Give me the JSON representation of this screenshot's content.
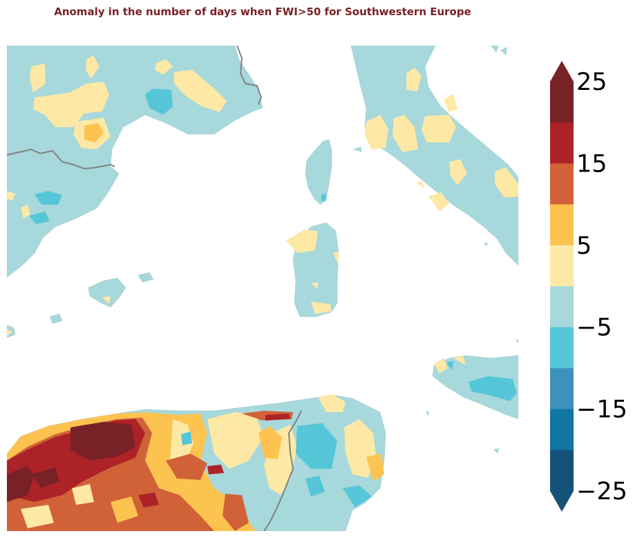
{
  "title": "Anomaly in the number of days when FWI>50 for Southwestern Europe",
  "colorbar": {
    "ticks": [
      "25",
      "15",
      "5",
      "−5",
      "−15",
      "−25"
    ],
    "tick_values": [
      25,
      15,
      5,
      -5,
      -15,
      -25
    ],
    "levels": [
      -25,
      -20,
      -15,
      -10,
      -5,
      0,
      5,
      10,
      15,
      20,
      25
    ],
    "colors": [
      "#14527a",
      "#0f77a1",
      "#3e90bd",
      "#55c6d7",
      "#a7d8db",
      "#fde8a5",
      "#fdc350",
      "#d16238",
      "#ad2227",
      "#782127"
    ],
    "extend_low_color": "#14527a",
    "extend_high_color": "#782127"
  },
  "map": {
    "sea_color": "#ffffff",
    "land_base_color": "#a7d8db",
    "border_color": "#808080"
  }
}
